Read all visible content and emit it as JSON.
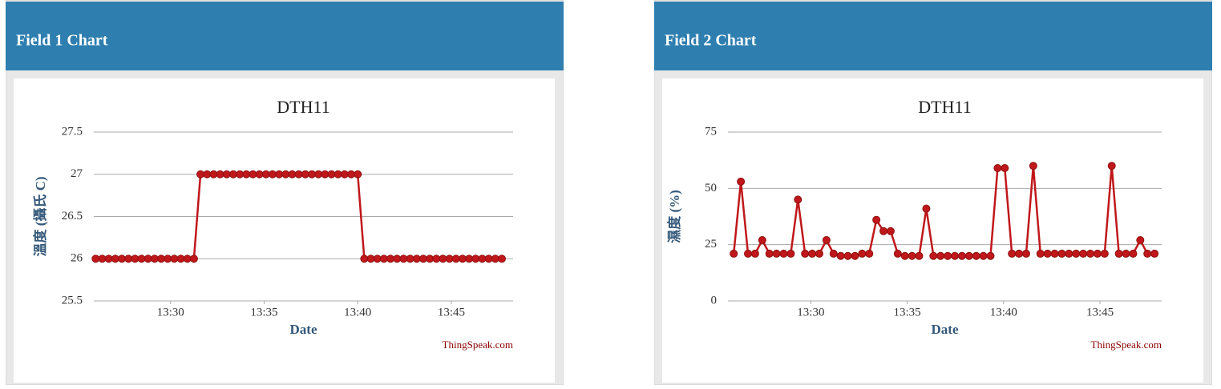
{
  "panels": [
    {
      "header": "Field 1 Chart"
    },
    {
      "header": "Field 2 Chart"
    }
  ],
  "chart_data": [
    {
      "type": "line",
      "title": "DTH11",
      "x_label": "Date",
      "y_label": "溫度 (攝氏 C)",
      "credit": "ThingSpeak.com",
      "color": "#c0171b",
      "grid": true,
      "xlim": [
        805.9,
        828.3
      ],
      "xticks": [
        {
          "value": 810,
          "label": "13:30"
        },
        {
          "value": 815,
          "label": "13:35"
        },
        {
          "value": 820,
          "label": "13:40"
        },
        {
          "value": 825,
          "label": "13:45"
        }
      ],
      "ylim": [
        25.5,
        27.5
      ],
      "yticks": [
        25.5,
        26,
        26.5,
        27,
        27.5
      ],
      "x": [
        806,
        806.35,
        806.7,
        807.05,
        807.4,
        807.75,
        808.1,
        808.45,
        808.8,
        809.15,
        809.5,
        809.85,
        810.2,
        810.55,
        810.9,
        811.25,
        811.6,
        811.95,
        812.3,
        812.65,
        813,
        813.35,
        813.7,
        814.05,
        814.4,
        814.75,
        815.1,
        815.45,
        815.8,
        816.15,
        816.5,
        816.85,
        817.2,
        817.55,
        817.9,
        818.25,
        818.6,
        818.95,
        819.3,
        819.65,
        820,
        820.35,
        820.7,
        821.05,
        821.4,
        821.75,
        822.1,
        822.45,
        822.8,
        823.15,
        823.5,
        823.85,
        824.2,
        824.55,
        824.9,
        825.25,
        825.6,
        825.95,
        826.3,
        826.65,
        827,
        827.35,
        827.7
      ],
      "values": [
        26,
        26,
        26,
        26,
        26,
        26,
        26,
        26,
        26,
        26,
        26,
        26,
        26,
        26,
        26,
        26,
        27,
        27,
        27,
        27,
        27,
        27,
        27,
        27,
        27,
        27,
        27,
        27,
        27,
        27,
        27,
        27,
        27,
        27,
        27,
        27,
        27,
        27,
        27,
        27,
        27,
        26,
        26,
        26,
        26,
        26,
        26,
        26,
        26,
        26,
        26,
        26,
        26,
        26,
        26,
        26,
        26,
        26,
        26,
        26,
        26,
        26,
        26
      ]
    },
    {
      "type": "line",
      "title": "DTH11",
      "x_label": "Date",
      "y_label": "濕度 (%)",
      "credit": "ThingSpeak.com",
      "color": "#c0171b",
      "grid": true,
      "xlim": [
        805.7,
        828.2
      ],
      "xticks": [
        {
          "value": 810,
          "label": "13:30"
        },
        {
          "value": 815,
          "label": "13:35"
        },
        {
          "value": 820,
          "label": "13:40"
        },
        {
          "value": 825,
          "label": "13:45"
        }
      ],
      "ylim": [
        0,
        75
      ],
      "yticks": [
        0,
        25,
        50,
        75
      ],
      "x": [
        806,
        806.37,
        806.74,
        807.11,
        807.48,
        807.85,
        808.22,
        808.59,
        808.96,
        809.33,
        809.7,
        810.07,
        810.44,
        810.81,
        811.18,
        811.55,
        811.92,
        812.29,
        812.66,
        813.03,
        813.4,
        813.77,
        814.14,
        814.51,
        814.88,
        815.25,
        815.62,
        815.99,
        816.36,
        816.73,
        817.1,
        817.47,
        817.84,
        818.21,
        818.58,
        818.95,
        819.32,
        819.69,
        820.06,
        820.43,
        820.8,
        821.17,
        821.54,
        821.91,
        822.28,
        822.65,
        823.02,
        823.39,
        823.76,
        824.13,
        824.5,
        824.87,
        825.24,
        825.61,
        825.98,
        826.35,
        826.72,
        827.09,
        827.46,
        827.83
      ],
      "values": [
        21,
        53,
        21,
        21,
        27,
        21,
        21,
        21,
        21,
        45,
        21,
        21,
        21,
        27,
        21,
        20,
        20,
        20,
        21,
        21,
        36,
        31,
        31,
        21,
        20,
        20,
        20,
        41,
        20,
        20,
        20,
        20,
        20,
        20,
        20,
        20,
        20,
        59,
        59,
        21,
        21,
        21,
        60,
        21,
        21,
        21,
        21,
        21,
        21,
        21,
        21,
        21,
        21,
        60,
        21,
        21,
        21,
        27,
        21,
        21
      ]
    }
  ]
}
